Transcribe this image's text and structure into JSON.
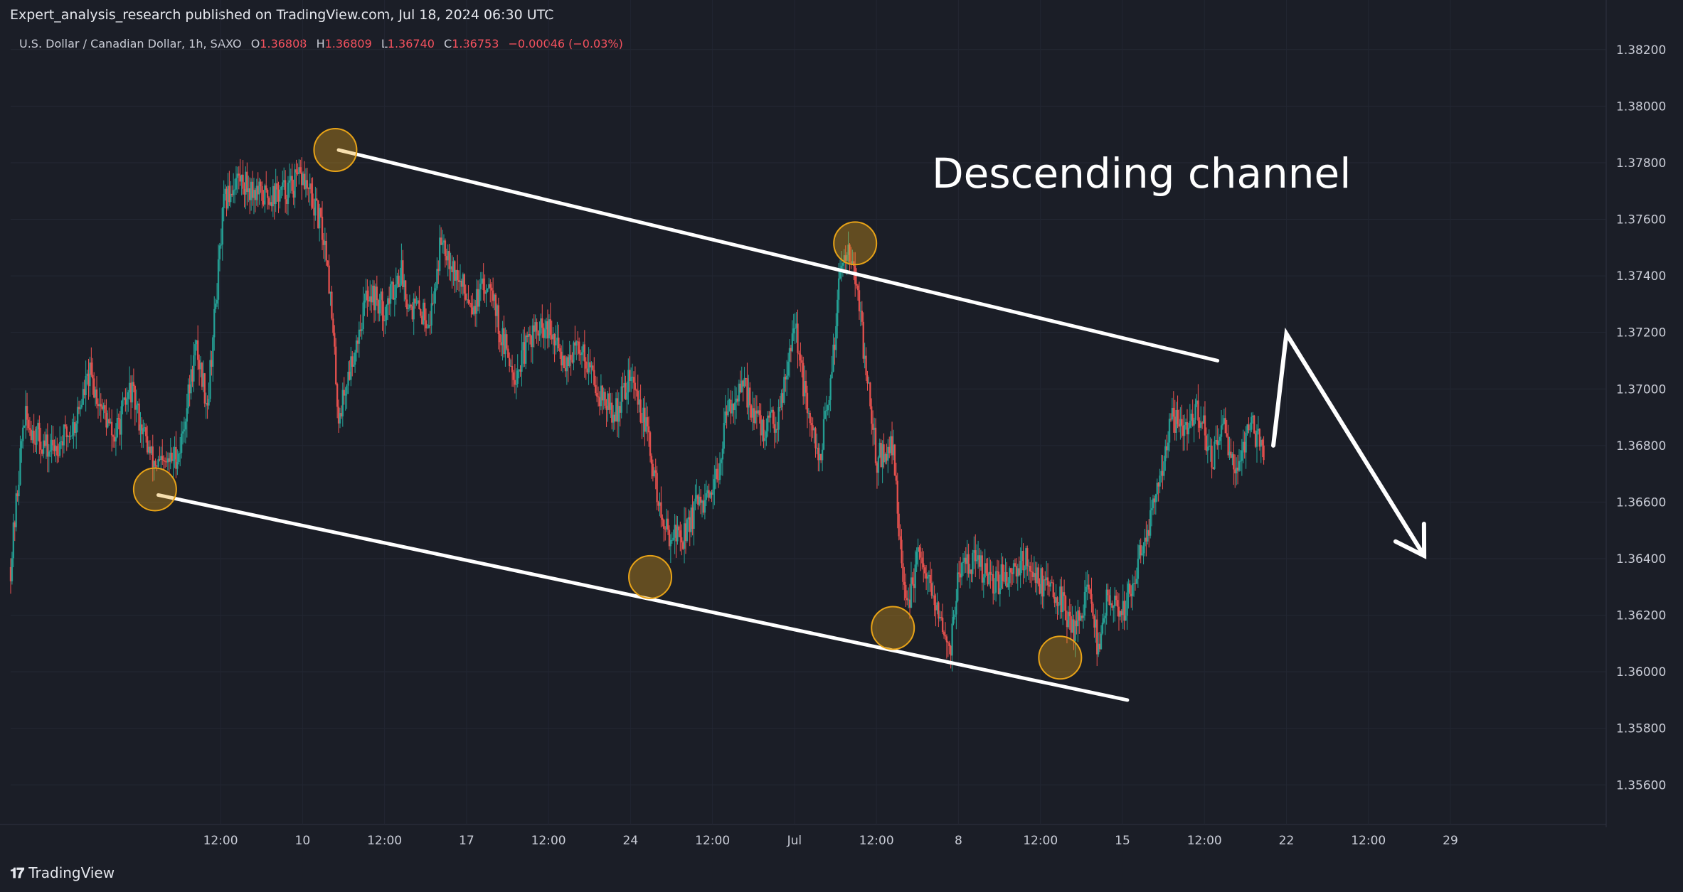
{
  "header": {
    "publisher": "Expert_analysis_research published on TradingView.com, Jul 18, 2024 06:30 UTC"
  },
  "legend": {
    "symbol": "U.S. Dollar / Canadian Dollar, 1h, SAXO",
    "open_label": "O",
    "open": "1.36808",
    "high_label": "H",
    "high": "1.36809",
    "low_label": "L",
    "low": "1.36740",
    "close_label": "C",
    "close": "1.36753",
    "change": "−0.00046 (−0.03%)"
  },
  "brand": {
    "name": "TradingView"
  },
  "colors": {
    "background": "#1b1e27",
    "up_candle": "#26a69a",
    "down_candle": "#ef5350",
    "channel_line": "#ffffff",
    "touch_marker": "#e8a317"
  },
  "chart_data": {
    "type": "candlestick",
    "symbol": "USDCAD",
    "timeframe": "1h",
    "y_ticks": [
      "1.38200",
      "1.38000",
      "1.37800",
      "1.37600",
      "1.37400",
      "1.37200",
      "1.37000",
      "1.36800",
      "1.36600",
      "1.36400",
      "1.36200",
      "1.36000",
      "1.35800",
      "1.35600"
    ],
    "ylim": [
      1.3546,
      1.383
    ],
    "x_ticks": [
      {
        "label": "12:00",
        "t": 0.5
      },
      {
        "label": "10",
        "t": 1
      },
      {
        "label": "12:00",
        "t": 1.5
      },
      {
        "label": "17",
        "t": 2
      },
      {
        "label": "12:00",
        "t": 2.5
      },
      {
        "label": "24",
        "t": 3
      },
      {
        "label": "12:00",
        "t": 3.5
      },
      {
        "label": "Jul",
        "t": 4
      },
      {
        "label": "12:00",
        "t": 4.5
      },
      {
        "label": "8",
        "t": 5
      },
      {
        "label": "12:00",
        "t": 5.5
      },
      {
        "label": "15",
        "t": 6
      },
      {
        "label": "12:00",
        "t": 6.5
      },
      {
        "label": "22",
        "t": 7
      },
      {
        "label": "12:00",
        "t": 7.5
      },
      {
        "label": "29",
        "t": 8
      }
    ],
    "xlim": [
      -0.78,
      8.95
    ],
    "price_path": [
      [
        -0.78,
        1.3637
      ],
      [
        -0.7,
        1.369
      ],
      [
        -0.55,
        1.3678
      ],
      [
        -0.4,
        1.3686
      ],
      [
        -0.3,
        1.3705
      ],
      [
        -0.15,
        1.3682
      ],
      [
        -0.05,
        1.37
      ],
      [
        0.08,
        1.3675
      ],
      [
        0.15,
        1.3672
      ],
      [
        0.25,
        1.3678
      ],
      [
        0.35,
        1.3715
      ],
      [
        0.42,
        1.3695
      ],
      [
        0.52,
        1.3765
      ],
      [
        0.6,
        1.3775
      ],
      [
        0.75,
        1.3768
      ],
      [
        0.9,
        1.377
      ],
      [
        1.0,
        1.3775
      ],
      [
        1.1,
        1.376
      ],
      [
        1.15,
        1.3748
      ],
      [
        1.22,
        1.369
      ],
      [
        1.32,
        1.3715
      ],
      [
        1.4,
        1.3735
      ],
      [
        1.5,
        1.3728
      ],
      [
        1.6,
        1.3742
      ],
      [
        1.65,
        1.373
      ],
      [
        1.78,
        1.3725
      ],
      [
        1.85,
        1.3755
      ],
      [
        1.95,
        1.3738
      ],
      [
        2.05,
        1.373
      ],
      [
        2.15,
        1.374
      ],
      [
        2.2,
        1.372
      ],
      [
        2.3,
        1.3705
      ],
      [
        2.4,
        1.372
      ],
      [
        2.5,
        1.372
      ],
      [
        2.6,
        1.371
      ],
      [
        2.7,
        1.3715
      ],
      [
        2.8,
        1.37
      ],
      [
        2.9,
        1.369
      ],
      [
        3.0,
        1.3705
      ],
      [
        3.1,
        1.3685
      ],
      [
        3.2,
        1.365
      ],
      [
        3.32,
        1.3648
      ],
      [
        3.4,
        1.3658
      ],
      [
        3.5,
        1.366
      ],
      [
        3.6,
        1.3695
      ],
      [
        3.7,
        1.37
      ],
      [
        3.8,
        1.3685
      ],
      [
        3.9,
        1.369
      ],
      [
        4.0,
        1.3725
      ],
      [
        4.08,
        1.369
      ],
      [
        4.15,
        1.3675
      ],
      [
        4.22,
        1.37
      ],
      [
        4.28,
        1.3745
      ],
      [
        4.33,
        1.3752
      ],
      [
        4.38,
        1.3735
      ],
      [
        4.45,
        1.37
      ],
      [
        4.5,
        1.3675
      ],
      [
        4.6,
        1.368
      ],
      [
        4.68,
        1.362
      ],
      [
        4.75,
        1.364
      ],
      [
        4.82,
        1.363
      ],
      [
        4.9,
        1.3615
      ],
      [
        4.95,
        1.3608
      ],
      [
        5.0,
        1.3635
      ],
      [
        5.1,
        1.364
      ],
      [
        5.2,
        1.363
      ],
      [
        5.3,
        1.3635
      ],
      [
        5.4,
        1.364
      ],
      [
        5.5,
        1.3632
      ],
      [
        5.6,
        1.3628
      ],
      [
        5.7,
        1.3615
      ],
      [
        5.8,
        1.363
      ],
      [
        5.85,
        1.3608
      ],
      [
        5.9,
        1.3625
      ],
      [
        6.0,
        1.362
      ],
      [
        6.1,
        1.364
      ],
      [
        6.2,
        1.366
      ],
      [
        6.3,
        1.369
      ],
      [
        6.4,
        1.3685
      ],
      [
        6.45,
        1.3695
      ],
      [
        6.55,
        1.3675
      ],
      [
        6.62,
        1.3685
      ],
      [
        6.7,
        1.3672
      ],
      [
        6.78,
        1.369
      ],
      [
        6.82,
        1.3682
      ],
      [
        6.85,
        1.368
      ],
      [
        6.87,
        1.3678
      ]
    ],
    "channel": {
      "upper": [
        [
          1.22,
          1.37845
        ],
        [
          6.58,
          1.371
        ]
      ],
      "lower": [
        [
          0.12,
          1.36625
        ],
        [
          6.03,
          1.359
        ]
      ]
    },
    "touch_points": [
      [
        1.2,
        1.37845
      ],
      [
        4.37,
        1.37515
      ],
      [
        0.1,
        1.36645
      ],
      [
        3.12,
        1.36335
      ],
      [
        4.6,
        1.36155
      ],
      [
        5.62,
        1.3605
      ]
    ],
    "projection": [
      [
        6.92,
        1.368
      ],
      [
        7.0,
        1.37195
      ],
      [
        7.84,
        1.3641
      ]
    ],
    "annotation": "Descending channel"
  }
}
